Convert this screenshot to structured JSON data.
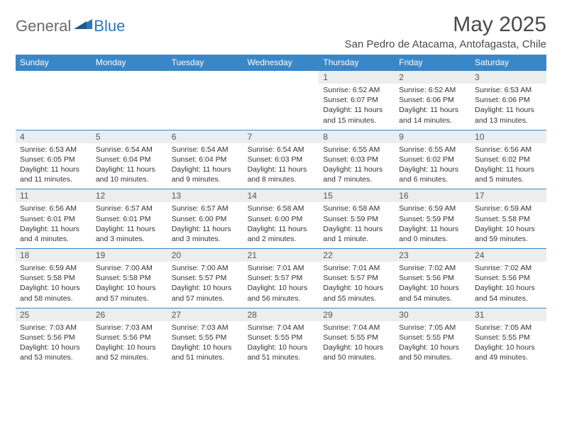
{
  "logo": {
    "text1": "General",
    "text2": "Blue"
  },
  "title": "May 2025",
  "location": "San Pedro de Atacama, Antofagasta, Chile",
  "colors": {
    "header_bg": "#3a87c8",
    "header_fg": "#ffffff",
    "daynum_bg": "#eceded",
    "row_border": "#3a87c8",
    "logo_gray": "#6a6a6a",
    "logo_blue": "#2f78b9"
  },
  "weekdays": [
    "Sunday",
    "Monday",
    "Tuesday",
    "Wednesday",
    "Thursday",
    "Friday",
    "Saturday"
  ],
  "weeks": [
    [
      {
        "n": "",
        "sr": "",
        "ss": "",
        "dl": ""
      },
      {
        "n": "",
        "sr": "",
        "ss": "",
        "dl": ""
      },
      {
        "n": "",
        "sr": "",
        "ss": "",
        "dl": ""
      },
      {
        "n": "",
        "sr": "",
        "ss": "",
        "dl": ""
      },
      {
        "n": "1",
        "sr": "6:52 AM",
        "ss": "6:07 PM",
        "dl": "11 hours and 15 minutes."
      },
      {
        "n": "2",
        "sr": "6:52 AM",
        "ss": "6:06 PM",
        "dl": "11 hours and 14 minutes."
      },
      {
        "n": "3",
        "sr": "6:53 AM",
        "ss": "6:06 PM",
        "dl": "11 hours and 13 minutes."
      }
    ],
    [
      {
        "n": "4",
        "sr": "6:53 AM",
        "ss": "6:05 PM",
        "dl": "11 hours and 11 minutes."
      },
      {
        "n": "5",
        "sr": "6:54 AM",
        "ss": "6:04 PM",
        "dl": "11 hours and 10 minutes."
      },
      {
        "n": "6",
        "sr": "6:54 AM",
        "ss": "6:04 PM",
        "dl": "11 hours and 9 minutes."
      },
      {
        "n": "7",
        "sr": "6:54 AM",
        "ss": "6:03 PM",
        "dl": "11 hours and 8 minutes."
      },
      {
        "n": "8",
        "sr": "6:55 AM",
        "ss": "6:03 PM",
        "dl": "11 hours and 7 minutes."
      },
      {
        "n": "9",
        "sr": "6:55 AM",
        "ss": "6:02 PM",
        "dl": "11 hours and 6 minutes."
      },
      {
        "n": "10",
        "sr": "6:56 AM",
        "ss": "6:02 PM",
        "dl": "11 hours and 5 minutes."
      }
    ],
    [
      {
        "n": "11",
        "sr": "6:56 AM",
        "ss": "6:01 PM",
        "dl": "11 hours and 4 minutes."
      },
      {
        "n": "12",
        "sr": "6:57 AM",
        "ss": "6:01 PM",
        "dl": "11 hours and 3 minutes."
      },
      {
        "n": "13",
        "sr": "6:57 AM",
        "ss": "6:00 PM",
        "dl": "11 hours and 3 minutes."
      },
      {
        "n": "14",
        "sr": "6:58 AM",
        "ss": "6:00 PM",
        "dl": "11 hours and 2 minutes."
      },
      {
        "n": "15",
        "sr": "6:58 AM",
        "ss": "5:59 PM",
        "dl": "11 hours and 1 minute."
      },
      {
        "n": "16",
        "sr": "6:59 AM",
        "ss": "5:59 PM",
        "dl": "11 hours and 0 minutes."
      },
      {
        "n": "17",
        "sr": "6:59 AM",
        "ss": "5:58 PM",
        "dl": "10 hours and 59 minutes."
      }
    ],
    [
      {
        "n": "18",
        "sr": "6:59 AM",
        "ss": "5:58 PM",
        "dl": "10 hours and 58 minutes."
      },
      {
        "n": "19",
        "sr": "7:00 AM",
        "ss": "5:58 PM",
        "dl": "10 hours and 57 minutes."
      },
      {
        "n": "20",
        "sr": "7:00 AM",
        "ss": "5:57 PM",
        "dl": "10 hours and 57 minutes."
      },
      {
        "n": "21",
        "sr": "7:01 AM",
        "ss": "5:57 PM",
        "dl": "10 hours and 56 minutes."
      },
      {
        "n": "22",
        "sr": "7:01 AM",
        "ss": "5:57 PM",
        "dl": "10 hours and 55 minutes."
      },
      {
        "n": "23",
        "sr": "7:02 AM",
        "ss": "5:56 PM",
        "dl": "10 hours and 54 minutes."
      },
      {
        "n": "24",
        "sr": "7:02 AM",
        "ss": "5:56 PM",
        "dl": "10 hours and 54 minutes."
      }
    ],
    [
      {
        "n": "25",
        "sr": "7:03 AM",
        "ss": "5:56 PM",
        "dl": "10 hours and 53 minutes."
      },
      {
        "n": "26",
        "sr": "7:03 AM",
        "ss": "5:56 PM",
        "dl": "10 hours and 52 minutes."
      },
      {
        "n": "27",
        "sr": "7:03 AM",
        "ss": "5:55 PM",
        "dl": "10 hours and 51 minutes."
      },
      {
        "n": "28",
        "sr": "7:04 AM",
        "ss": "5:55 PM",
        "dl": "10 hours and 51 minutes."
      },
      {
        "n": "29",
        "sr": "7:04 AM",
        "ss": "5:55 PM",
        "dl": "10 hours and 50 minutes."
      },
      {
        "n": "30",
        "sr": "7:05 AM",
        "ss": "5:55 PM",
        "dl": "10 hours and 50 minutes."
      },
      {
        "n": "31",
        "sr": "7:05 AM",
        "ss": "5:55 PM",
        "dl": "10 hours and 49 minutes."
      }
    ]
  ]
}
